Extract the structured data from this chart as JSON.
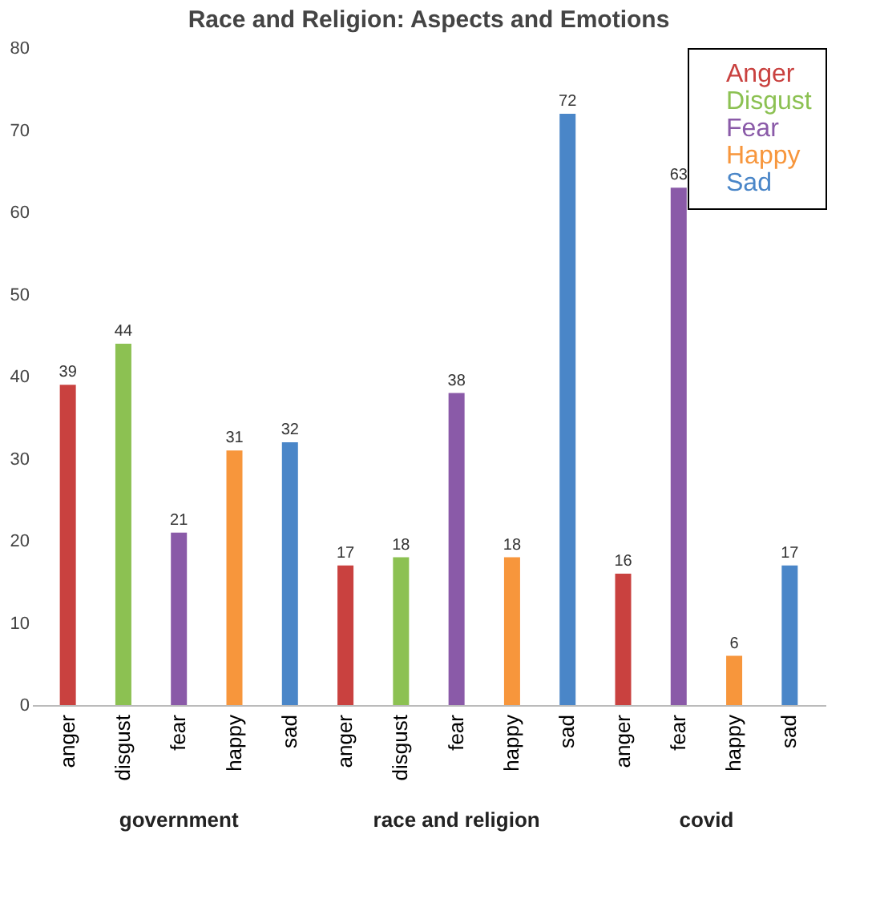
{
  "chart_data": {
    "type": "bar",
    "title": "Race and Religion: Aspects and Emotions",
    "categories": [
      "anger",
      "disgust",
      "fear",
      "happy",
      "sad",
      "anger",
      "disgust",
      "fear",
      "happy",
      "sad",
      "anger",
      "fear",
      "happy",
      "sad"
    ],
    "series": [
      {
        "name": "Anger",
        "color": "#c9413f",
        "values": [
          39,
          null,
          null,
          null,
          null,
          17,
          null,
          null,
          null,
          null,
          16,
          null,
          null,
          null
        ]
      },
      {
        "name": "Disgust",
        "color": "#8cc152",
        "values": [
          null,
          44,
          null,
          null,
          null,
          null,
          18,
          null,
          null,
          null,
          null,
          null,
          null,
          null
        ]
      },
      {
        "name": "Fear",
        "color": "#8a5aa8",
        "values": [
          null,
          null,
          21,
          null,
          null,
          null,
          null,
          38,
          null,
          null,
          null,
          63,
          null,
          null
        ]
      },
      {
        "name": "Happy",
        "color": "#f7963c",
        "values": [
          null,
          null,
          null,
          31,
          null,
          null,
          null,
          null,
          18,
          null,
          null,
          null,
          6,
          null
        ]
      },
      {
        "name": "Sad",
        "color": "#4a86c8",
        "values": [
          null,
          null,
          null,
          null,
          32,
          null,
          null,
          null,
          null,
          72,
          null,
          null,
          null,
          17
        ]
      }
    ],
    "annotations": [
      "government",
      "race and religion",
      "covid"
    ],
    "ylim": [
      0,
      80
    ],
    "yticks": [
      0,
      10,
      20,
      30,
      40,
      50,
      60,
      70,
      80
    ],
    "data_labels": true,
    "legend": "top right",
    "grid": false
  }
}
